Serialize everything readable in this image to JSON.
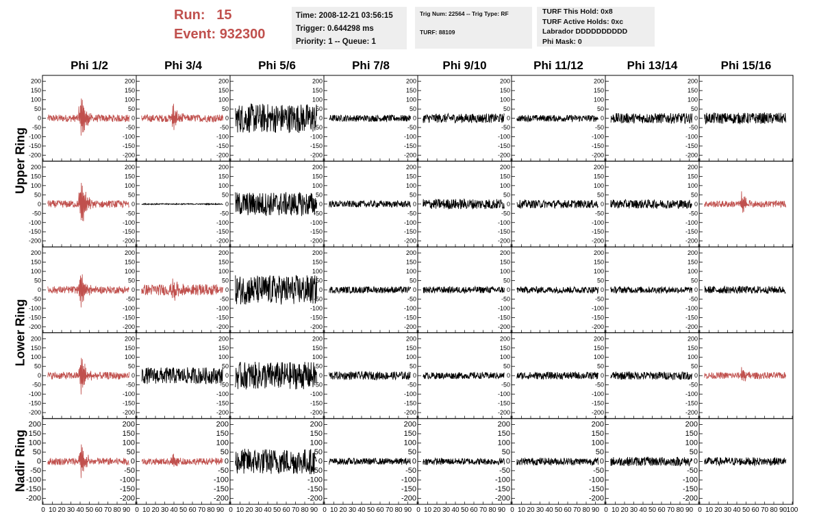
{
  "header": {
    "run_label": "Run:",
    "run_value": "15",
    "event_label": "Event:",
    "event_value": "932300"
  },
  "info_panel_1": {
    "time": "Time: 2008-12-21 03:56:15",
    "trigger": "Trigger: 0.644298 ms",
    "priority": "Priority: 1 -- Queue: 1"
  },
  "info_panel_2": {
    "trig": "Trig Num: 22564 -- Trig Type: RF",
    "turf": "TURF: 88109"
  },
  "info_panel_3": {
    "hold": "TURF This Hold: 0x8",
    "active": "TURF Active Holds: 0xc",
    "labrador": "Labrador DDDDDDDDDD",
    "phimask": "Phi Mask: 0"
  },
  "colors": {
    "highlight": "#c0504d",
    "normal": "#000000"
  },
  "chart_data": {
    "type": "line",
    "columns": [
      "Phi 1/2",
      "Phi 3/4",
      "Phi 5/6",
      "Phi 7/8",
      "Phi 9/10",
      "Phi 11/12",
      "Phi 13/14",
      "Phi 15/16"
    ],
    "rows": [
      "Upper Ring",
      "Upper Ring",
      "Lower Ring",
      "Lower Ring",
      "Nadir Ring"
    ],
    "row_labels": [
      "Upper Ring",
      "Lower Ring",
      "Nadir Ring"
    ],
    "ylim": [
      -210,
      210
    ],
    "yticks": [
      -200,
      -150,
      -100,
      -50,
      0,
      50,
      100,
      150,
      200
    ],
    "xlim": [
      0,
      100
    ],
    "xticks": [
      0,
      10,
      20,
      30,
      40,
      50,
      60,
      70,
      80,
      90,
      100
    ],
    "highlight_cells": [
      [
        0,
        0
      ],
      [
        0,
        1
      ],
      [
        1,
        0
      ],
      [
        1,
        7
      ],
      [
        2,
        0
      ],
      [
        2,
        1
      ],
      [
        3,
        0
      ],
      [
        3,
        7
      ],
      [
        4,
        0
      ],
      [
        4,
        1
      ]
    ],
    "trace_profiles": [
      [
        {
          "amp": 20,
          "pulse": 200,
          "t0": 40,
          "hl": 1
        },
        {
          "amp": 20,
          "pulse": 120,
          "t0": 38,
          "hl": 1
        },
        {
          "amp": 80,
          "pulse": 0,
          "t0": 0
        },
        {
          "amp": 18,
          "pulse": 0,
          "t0": 0
        },
        {
          "amp": 25,
          "pulse": 0,
          "t0": 0
        },
        {
          "amp": 18,
          "pulse": 0,
          "t0": 0
        },
        {
          "amp": 28,
          "pulse": 0,
          "t0": 0
        },
        {
          "amp": 30,
          "pulse": 0,
          "t0": 0
        }
      ],
      [
        {
          "amp": 20,
          "pulse": 200,
          "t0": 40,
          "hl": 1
        },
        {
          "amp": 3,
          "pulse": 0,
          "t0": 0
        },
        {
          "amp": 65,
          "pulse": 0,
          "t0": 0
        },
        {
          "amp": 18,
          "pulse": 0,
          "t0": 0
        },
        {
          "amp": 28,
          "pulse": 0,
          "t0": 0
        },
        {
          "amp": 22,
          "pulse": 0,
          "t0": 0
        },
        {
          "amp": 24,
          "pulse": 0,
          "t0": 0
        },
        {
          "amp": 18,
          "pulse": 80,
          "t0": 45,
          "hl": 1
        }
      ],
      [
        {
          "amp": 20,
          "pulse": 160,
          "t0": 40,
          "hl": 1
        },
        {
          "amp": 30,
          "pulse": 70,
          "t0": 38,
          "hl": 1
        },
        {
          "amp": 80,
          "pulse": 0,
          "t0": 0
        },
        {
          "amp": 18,
          "pulse": 0,
          "t0": 0
        },
        {
          "amp": 18,
          "pulse": 0,
          "t0": 0
        },
        {
          "amp": 18,
          "pulse": 0,
          "t0": 0
        },
        {
          "amp": 18,
          "pulse": 0,
          "t0": 0
        },
        {
          "amp": 20,
          "pulse": 0,
          "t0": 0
        }
      ],
      [
        {
          "amp": 20,
          "pulse": 170,
          "t0": 40,
          "hl": 1
        },
        {
          "amp": 45,
          "pulse": 0,
          "t0": 0
        },
        {
          "amp": 75,
          "pulse": 0,
          "t0": 0
        },
        {
          "amp": 22,
          "pulse": 0,
          "t0": 0
        },
        {
          "amp": 18,
          "pulse": 0,
          "t0": 0
        },
        {
          "amp": 20,
          "pulse": 0,
          "t0": 0
        },
        {
          "amp": 22,
          "pulse": 0,
          "t0": 0
        },
        {
          "amp": 18,
          "pulse": 65,
          "t0": 45,
          "hl": 1
        }
      ],
      [
        {
          "amp": 20,
          "pulse": 150,
          "t0": 40,
          "hl": 1
        },
        {
          "amp": 18,
          "pulse": 55,
          "t0": 38,
          "hl": 1
        },
        {
          "amp": 70,
          "pulse": 0,
          "t0": 0
        },
        {
          "amp": 18,
          "pulse": 0,
          "t0": 0
        },
        {
          "amp": 18,
          "pulse": 0,
          "t0": 0
        },
        {
          "amp": 20,
          "pulse": 0,
          "t0": 0
        },
        {
          "amp": 25,
          "pulse": 0,
          "t0": 0
        },
        {
          "amp": 22,
          "pulse": 0,
          "t0": 0
        }
      ]
    ]
  }
}
